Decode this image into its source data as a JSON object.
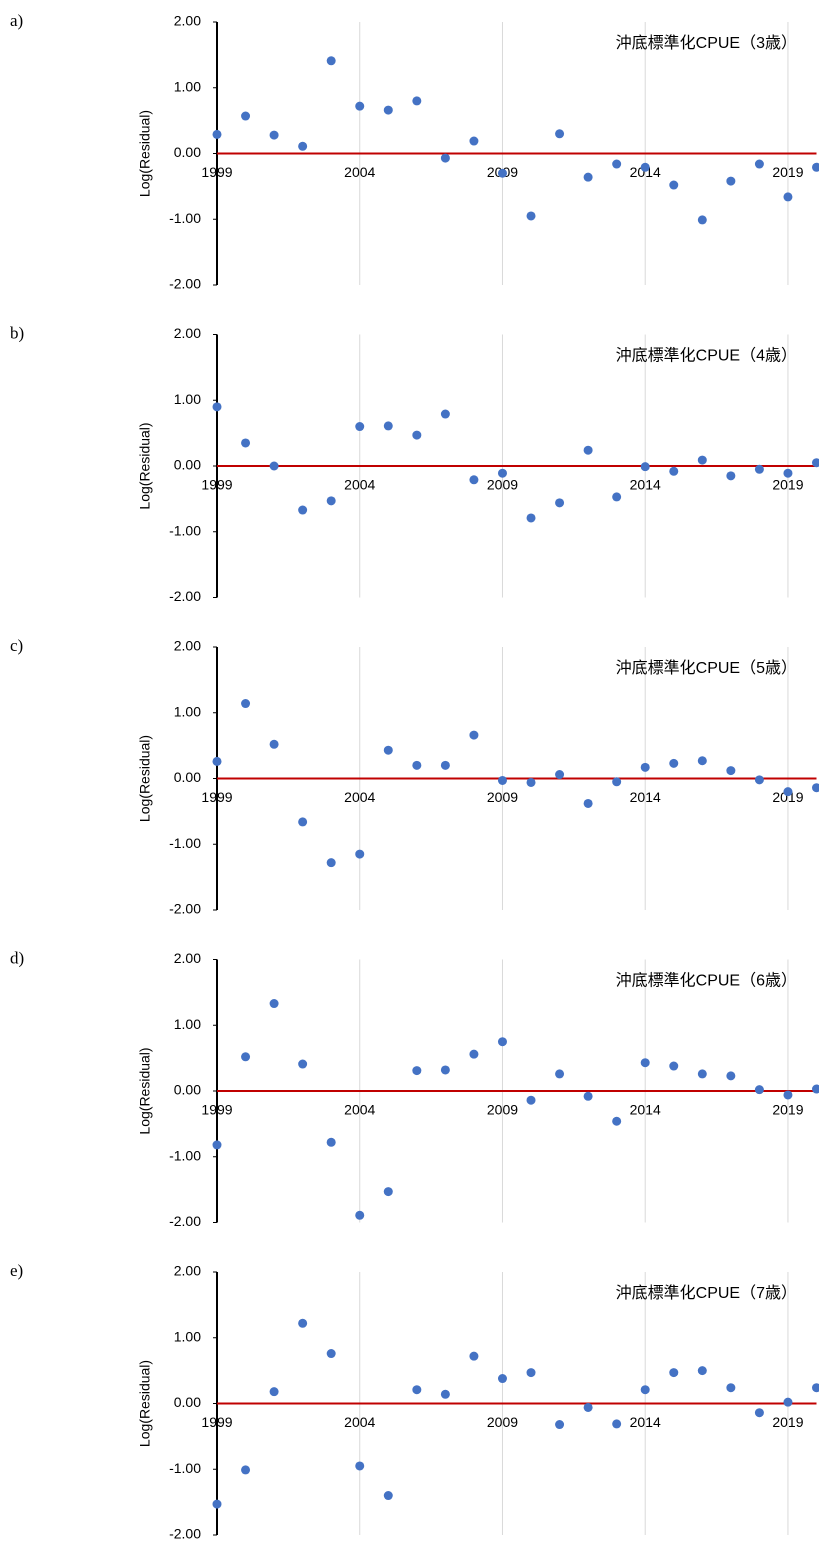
{
  "chart_data": [
    {
      "type": "scatter",
      "panel": "a)",
      "title": "沖底標準化CPUE（3歳）",
      "y_label": "Log(Residual)",
      "x": [
        1999,
        2000,
        2001,
        2002,
        2003,
        2004,
        2005,
        2006,
        2007,
        2008,
        2009,
        2010,
        2011,
        2012,
        2013,
        2014,
        2015,
        2016,
        2017,
        2018,
        2019,
        2020
      ],
      "values": [
        0.29,
        0.57,
        0.28,
        0.11,
        1.41,
        0.72,
        0.66,
        0.8,
        -0.07,
        0.19,
        -0.3,
        -0.95,
        0.3,
        -0.36,
        -0.16,
        -0.21,
        -0.48,
        -1.01,
        -0.42,
        -0.16,
        -0.66,
        -0.21
      ],
      "color": "#4472c4",
      "xlim": [
        1999,
        2020
      ],
      "xticks": [
        1999,
        2004,
        2009,
        2014,
        2019
      ],
      "ylim": [
        -2,
        2
      ],
      "yticks": [
        {
          "value": -2,
          "label": "-2.00"
        },
        {
          "value": -1,
          "label": "-1.00"
        },
        {
          "value": 0,
          "label": "0.00"
        },
        {
          "value": 1,
          "label": "1.00"
        },
        {
          "value": 2,
          "label": "2.00"
        }
      ],
      "grid": "x",
      "reference_line": {
        "y": 0,
        "color": "#c00000"
      }
    },
    {
      "type": "scatter",
      "panel": "b)",
      "title": "沖底標準化CPUE（4歳）",
      "y_label": "Log(Residual)",
      "x": [
        1999,
        2000,
        2001,
        2002,
        2003,
        2004,
        2005,
        2006,
        2007,
        2008,
        2009,
        2010,
        2011,
        2012,
        2013,
        2014,
        2015,
        2016,
        2017,
        2018,
        2019,
        2020
      ],
      "values": [
        0.9,
        0.35,
        0.0,
        -0.67,
        -0.53,
        0.6,
        0.61,
        0.47,
        0.79,
        -0.21,
        -0.11,
        -0.79,
        -0.56,
        0.24,
        -0.47,
        -0.01,
        -0.08,
        0.09,
        -0.15,
        -0.05,
        -0.11,
        0.05
      ],
      "color": "#4472c4",
      "xlim": [
        1999,
        2020
      ],
      "xticks": [
        1999,
        2004,
        2009,
        2014,
        2019
      ],
      "ylim": [
        -2,
        2
      ],
      "yticks": [
        {
          "value": -2,
          "label": "-2.00"
        },
        {
          "value": -1,
          "label": "-1.00"
        },
        {
          "value": 0,
          "label": "0.00"
        },
        {
          "value": 1,
          "label": "1.00"
        },
        {
          "value": 2,
          "label": "2.00"
        }
      ],
      "grid": "x",
      "reference_line": {
        "y": 0,
        "color": "#c00000"
      }
    },
    {
      "type": "scatter",
      "panel": "c)",
      "title": "沖底標準化CPUE（5歳）",
      "y_label": "Log(Residual)",
      "x": [
        1999,
        2000,
        2001,
        2002,
        2003,
        2004,
        2005,
        2006,
        2007,
        2008,
        2009,
        2010,
        2011,
        2012,
        2013,
        2014,
        2015,
        2016,
        2017,
        2018,
        2019,
        2020
      ],
      "values": [
        0.26,
        1.14,
        0.52,
        -0.66,
        -1.28,
        -1.15,
        0.43,
        0.2,
        0.2,
        0.66,
        -0.03,
        -0.06,
        0.06,
        -0.38,
        -0.05,
        0.17,
        0.23,
        0.27,
        0.12,
        -0.02,
        -0.2,
        -0.14
      ],
      "color": "#4472c4",
      "xlim": [
        1999,
        2020
      ],
      "xticks": [
        1999,
        2004,
        2009,
        2014,
        2019
      ],
      "ylim": [
        -2,
        2
      ],
      "yticks": [
        {
          "value": -2,
          "label": "-2.00"
        },
        {
          "value": -1,
          "label": "-1.00"
        },
        {
          "value": 0,
          "label": "0.00"
        },
        {
          "value": 1,
          "label": "1.00"
        },
        {
          "value": 2,
          "label": "2.00"
        }
      ],
      "grid": "x",
      "reference_line": {
        "y": 0,
        "color": "#c00000"
      }
    },
    {
      "type": "scatter",
      "panel": "d)",
      "title": "沖底標準化CPUE（6歳）",
      "y_label": "Log(Residual)",
      "x": [
        1999,
        2000,
        2001,
        2002,
        2003,
        2004,
        2005,
        2006,
        2007,
        2008,
        2009,
        2010,
        2011,
        2012,
        2013,
        2014,
        2015,
        2016,
        2017,
        2018,
        2019,
        2020
      ],
      "values": [
        -0.82,
        0.52,
        1.33,
        0.41,
        -0.78,
        -1.89,
        -1.53,
        0.31,
        0.32,
        0.56,
        0.75,
        -0.14,
        0.26,
        -0.08,
        -0.46,
        0.43,
        0.38,
        0.26,
        0.23,
        0.02,
        -0.06,
        0.03
      ],
      "color": "#4472c4",
      "xlim": [
        1999,
        2020
      ],
      "xticks": [
        1999,
        2004,
        2009,
        2014,
        2019
      ],
      "ylim": [
        -2,
        2
      ],
      "yticks": [
        {
          "value": -2,
          "label": "-2.00"
        },
        {
          "value": -1,
          "label": "-1.00"
        },
        {
          "value": 0,
          "label": "0.00"
        },
        {
          "value": 1,
          "label": "1.00"
        },
        {
          "value": 2,
          "label": "2.00"
        }
      ],
      "grid": "x",
      "reference_line": {
        "y": 0,
        "color": "#c00000"
      }
    },
    {
      "type": "scatter",
      "panel": "e)",
      "title": "沖底標準化CPUE（7歳）",
      "y_label": "Log(Residual)",
      "x": [
        1999,
        2000,
        2001,
        2002,
        2003,
        2004,
        2005,
        2006,
        2007,
        2008,
        2009,
        2010,
        2011,
        2012,
        2013,
        2014,
        2015,
        2016,
        2017,
        2018,
        2019,
        2020
      ],
      "values": [
        -1.53,
        -1.01,
        0.18,
        1.22,
        0.76,
        -0.95,
        -1.4,
        0.21,
        0.14,
        0.72,
        0.38,
        0.47,
        -0.32,
        -0.06,
        -0.31,
        0.21,
        0.47,
        0.5,
        0.24,
        -0.14,
        0.02,
        0.24
      ],
      "color": "#4472c4",
      "xlim": [
        1999,
        2020
      ],
      "xticks": [
        1999,
        2004,
        2009,
        2014,
        2019
      ],
      "ylim": [
        -2,
        2
      ],
      "yticks": [
        {
          "value": -2,
          "label": "-2.00"
        },
        {
          "value": -1,
          "label": "-1.00"
        },
        {
          "value": 0,
          "label": "0.00"
        },
        {
          "value": 1,
          "label": "1.00"
        },
        {
          "value": 2,
          "label": "2.00"
        }
      ],
      "grid": "x",
      "reference_line": {
        "y": 0,
        "color": "#c00000"
      }
    }
  ]
}
